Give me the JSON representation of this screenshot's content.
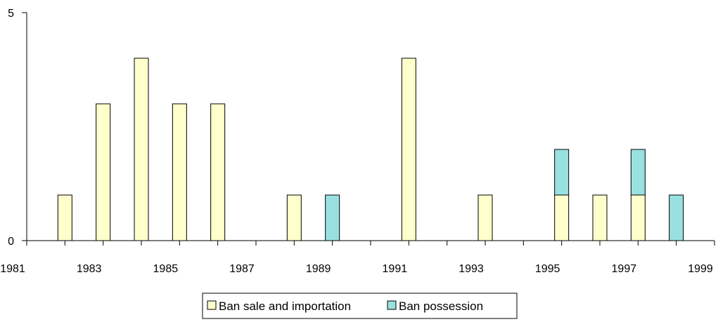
{
  "chart_data": {
    "type": "bar",
    "stacked": true,
    "x": [
      1982,
      1983,
      1984,
      1985,
      1986,
      1988,
      1989,
      1991,
      1993,
      1995,
      1996,
      1997,
      1998
    ],
    "series": [
      {
        "name": "Ban sale and importation",
        "color": "#ffffcc",
        "values": [
          1,
          3,
          4,
          3,
          3,
          1,
          0,
          4,
          1,
          1,
          1,
          1,
          0
        ]
      },
      {
        "name": "Ban possession",
        "color": "#99e0e0",
        "values": [
          0,
          0,
          0,
          0,
          0,
          0,
          1,
          0,
          0,
          1,
          0,
          1,
          1
        ]
      }
    ],
    "xlim": [
      1981,
      1999
    ],
    "x_tick_labels": [
      "1981",
      "1983",
      "1985",
      "1987",
      "1989",
      "1991",
      "1993",
      "1995",
      "1997",
      "1999"
    ],
    "ylim": [
      0,
      5
    ],
    "y_tick_labels": [
      "0",
      "5"
    ],
    "grid": false,
    "legend_position": "bottom"
  }
}
